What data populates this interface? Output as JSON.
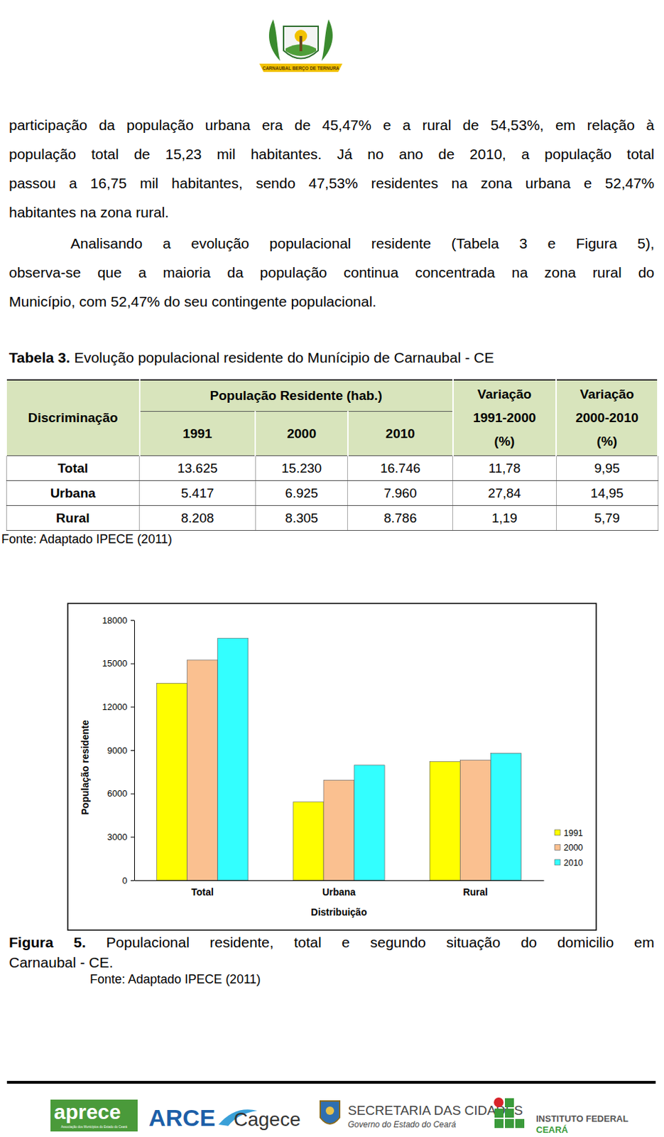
{
  "header": {
    "logo_text": "CARNAUBAL BERÇO DE TERNURA"
  },
  "paragraphs": [
    [
      "participação da população urbana era de 45,47% e a rural de 54,53%, em relação à",
      "população total de 15,23 mil habitantes. Já no ano de 2010, a população total",
      "passou a 16,75 mil habitantes, sendo 47,53% residentes na zona urbana e 52,47%",
      "habitantes na zona rural."
    ],
    [
      "Analisando a evolução populacional residente (Tabela 3 e Figura 5),",
      "observa-se que a maioria da população continua concentrada na zona rural do",
      "Município, com 52,47% do seu contingente populacional."
    ]
  ],
  "table": {
    "caption_label": "Tabela 3.",
    "caption": "Evolução populacional residente do Munícipio de Carnaubal - CE",
    "header": {
      "discriminacao": "Discriminação",
      "group": "População Residente (hab.)",
      "years": [
        "1991",
        "2000",
        "2010"
      ],
      "variations": [
        [
          "Variação",
          "1991-2000",
          "(%)"
        ],
        [
          "Variação",
          "2000-2010",
          "(%)"
        ]
      ]
    },
    "rows": [
      [
        "Total",
        "13.625",
        "15.230",
        "16.746",
        "11,78",
        "9,95"
      ],
      [
        "Urbana",
        "5.417",
        "6.925",
        "7.960",
        "27,84",
        "14,95"
      ],
      [
        "Rural",
        "8.208",
        "8.305",
        "8.786",
        "1,19",
        "5,79"
      ]
    ],
    "source": "Fonte: Adaptado IPECE (2011)"
  },
  "chart_data": {
    "type": "bar",
    "categories": [
      "Total",
      "Urbana",
      "Rural"
    ],
    "series": [
      {
        "name": "1991",
        "color": "#ffff00",
        "values": [
          13625,
          5417,
          8208
        ]
      },
      {
        "name": "2000",
        "color": "#fac090",
        "values": [
          15230,
          6925,
          8305
        ]
      },
      {
        "name": "2010",
        "color": "#33ffff",
        "values": [
          16746,
          7960,
          8786
        ]
      }
    ],
    "x_label": "Distribuição",
    "y_label": "População residente",
    "ylim": [
      0,
      18000
    ],
    "yticks": [
      0,
      3000,
      6000,
      9000,
      12000,
      15000,
      18000
    ],
    "grid": false,
    "legend": "lower right"
  },
  "figure": {
    "caption_label": "Figura 5.",
    "caption": [
      "Populacional residente, total e segundo situação do domicilio em",
      "Carnaubal - CE."
    ],
    "source": "Fonte: Adaptado IPECE (2011)"
  },
  "footer": {
    "aprece": "aprece",
    "aprece_sub": "Associação dos Municípios do Estado do Ceará",
    "arce": "ARCE",
    "cagece": "Cagece",
    "secretaria": "SECRETARIA DAS CIDADES",
    "governo": "Governo do Estado do Ceará",
    "instituto": "INSTITUTO FEDERAL",
    "ceara": "CEARÁ"
  }
}
